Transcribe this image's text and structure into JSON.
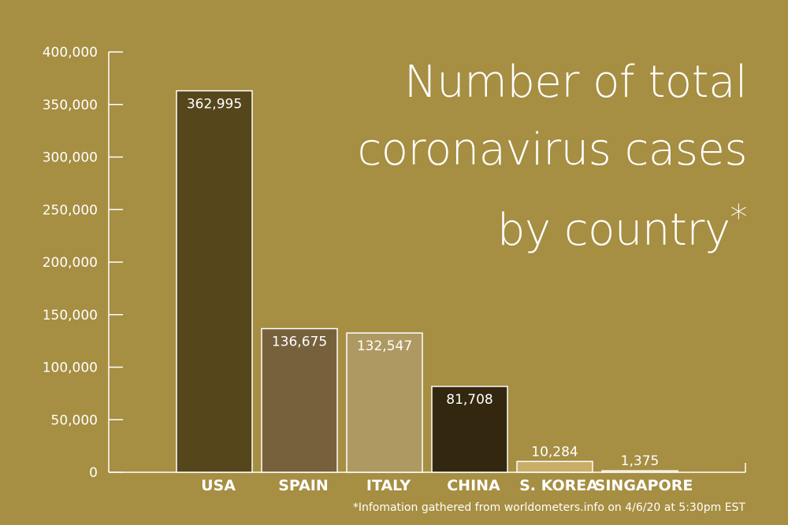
{
  "chart_data": {
    "type": "bar",
    "title_lines": [
      "Number of total",
      "coronavirus cases",
      "by country"
    ],
    "title_mark": "*",
    "xlabel": "",
    "ylabel": "",
    "categories": [
      "USA",
      "SPAIN",
      "ITALY",
      "CHINA",
      "S. KOREA",
      "SINGAPORE"
    ],
    "values": [
      362995,
      136675,
      132547,
      81708,
      10284,
      1375
    ],
    "value_labels": [
      "362,995",
      "136,675",
      "132,547",
      "81,708",
      "10,284",
      "1,375"
    ],
    "bar_colors": [
      "#55461C",
      "#77613C",
      "#AF9963",
      "#33280F",
      "#C9AE68",
      "#C4A960"
    ],
    "ylim": [
      0,
      400000
    ],
    "yticks": [
      0,
      50000,
      100000,
      150000,
      200000,
      250000,
      300000,
      350000,
      400000
    ],
    "ytick_labels": [
      "0",
      "50,000",
      "100,000",
      "150,000",
      "200,000",
      "250,000",
      "300,000",
      "350,000",
      "400,000"
    ],
    "grid": false,
    "legend": "none",
    "footnote": "*Infomation gathered from worldometers.info on 4/6/20 at 5:30pm EST"
  },
  "colors": {
    "background": "#A68E42",
    "axis": "#FFFFFF",
    "text": "#FFFFFF"
  }
}
